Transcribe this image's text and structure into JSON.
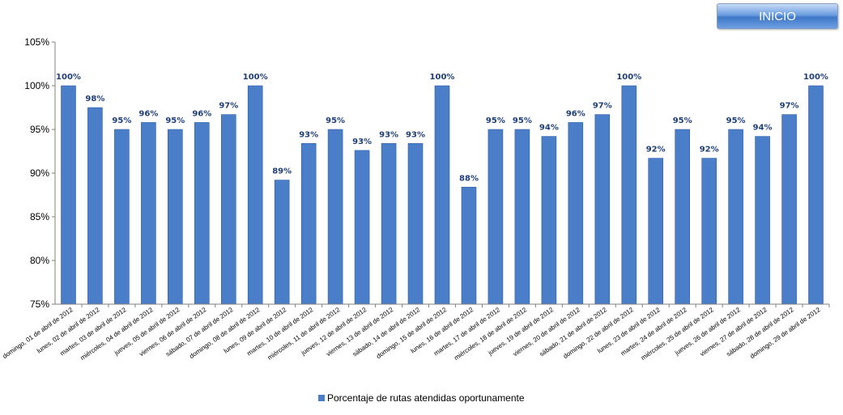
{
  "header": {
    "inicio_label": "INICIO"
  },
  "colors": {
    "bar": "#4a7ec8",
    "bar_edge": "#2f5fa8",
    "label": "#1f3f7a"
  },
  "chart_data": {
    "type": "bar",
    "categories": [
      "domingo, 01 de abril de 2012",
      "lunes, 02 de abril de 2012",
      "martes, 03 de abril de 2012",
      "miércoles, 04 de abril de 2012",
      "jueves, 05 de abril de 2012",
      "viernes, 06 de abril de 2012",
      "sábado, 07 de abril de 2012",
      "domingo, 08 de abril de 2012",
      "lunes, 09 de abril de 2012",
      "martes, 10 de abril de 2012",
      "miércoles, 11 de abril de 2012",
      "jueves, 12 de abril de 2012",
      "viernes, 13 de abril de 2012",
      "sábado, 14 de abril de 2012",
      "domingo, 15 de abril de 2012",
      "lunes, 16 de abril de 2012",
      "martes, 17 de abril de 2012",
      "miércoles, 18 de abril de 2012",
      "jueves, 19 de abril de 2012",
      "viernes, 20 de abril de 2012",
      "sábado, 21 de abril de 2012",
      "domingo, 22 de abril de 2012",
      "lunes, 23 de abril de 2012",
      "martes, 24 de abril de 2012",
      "miércoles, 25 de abril de 2012",
      "jueves, 26 de abril de 2012",
      "viernes, 27 de abril de 2012",
      "sábado, 28 de abril de 2012",
      "domingo, 29 de abril de 2012"
    ],
    "series": [
      {
        "name": "Porcentaje de rutas atendidas oportunamente",
        "values": [
          100,
          97.5,
          95,
          95.8,
          95,
          95.8,
          96.7,
          100,
          89.2,
          93.4,
          95,
          92.6,
          93.4,
          93.4,
          100,
          88.4,
          95,
          95,
          94.2,
          95.8,
          96.7,
          100,
          91.7,
          95,
          91.7,
          95,
          94.2,
          96.7,
          100
        ],
        "labels": [
          "100%",
          "98%",
          "95%",
          "96%",
          "95%",
          "96%",
          "97%",
          "100%",
          "89%",
          "93%",
          "95%",
          "93%",
          "93%",
          "93%",
          "100%",
          "88%",
          "95%",
          "95%",
          "94%",
          "96%",
          "97%",
          "100%",
          "92%",
          "95%",
          "92%",
          "95%",
          "94%",
          "97%",
          "100%"
        ]
      }
    ],
    "y_ticks": [
      "75%",
      "80%",
      "85%",
      "90%",
      "95%",
      "100%",
      "105%"
    ],
    "ylim": [
      75,
      105
    ],
    "grid": false,
    "legend": "bottom-center",
    "title": "",
    "xlabel": "",
    "ylabel": ""
  }
}
